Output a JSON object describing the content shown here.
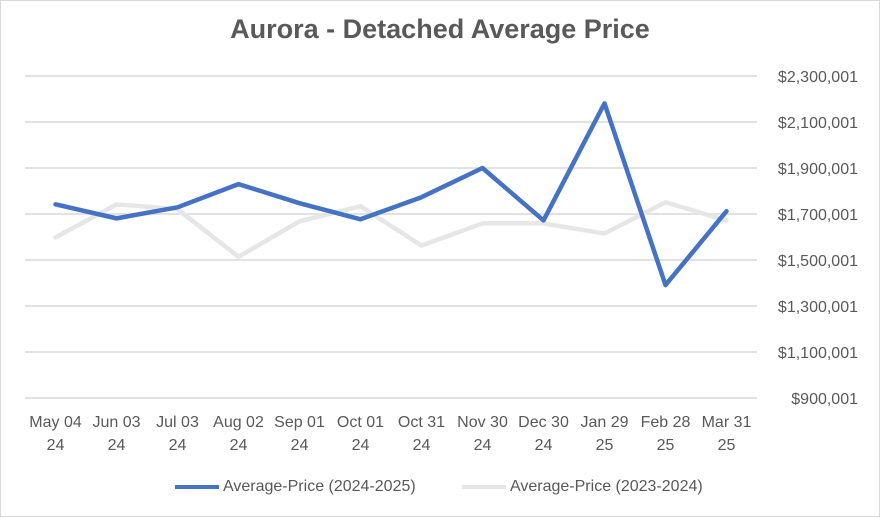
{
  "chart_data": {
    "type": "line",
    "title": "Aurora  - Detached Average Price",
    "categories": [
      [
        "May 04",
        "24"
      ],
      [
        "Jun 03",
        "24"
      ],
      [
        "Jul 03",
        "24"
      ],
      [
        "Aug 02",
        "24"
      ],
      [
        "Sep 01",
        "24"
      ],
      [
        "Oct 01",
        "24"
      ],
      [
        "Oct 31",
        "24"
      ],
      [
        "Nov 30",
        "24"
      ],
      [
        "Dec 30",
        "24"
      ],
      [
        "Jan 29",
        "25"
      ],
      [
        "Feb 28",
        "25"
      ],
      [
        "Mar 31",
        "25"
      ]
    ],
    "yticks": [
      "$900,001",
      "$1,100,001",
      "$1,300,001",
      "$1,500,001",
      "$1,700,001",
      "$1,900,001",
      "$2,100,001",
      "$2,300,001"
    ],
    "ylim": [
      900001,
      2300001
    ],
    "y_axis_position": "right",
    "grid": true,
    "legend_position": "bottom",
    "series": [
      {
        "name": "Average-Price (2024-2025)",
        "color": "#4472c4",
        "values": [
          1742000,
          1681000,
          1729000,
          1830000,
          1747000,
          1677000,
          1773000,
          1900000,
          1672000,
          2181000,
          1391000,
          1712000
        ]
      },
      {
        "name": "Average-Price (2023-2024)",
        "color": "#e7e6e6",
        "values": [
          1598000,
          1742000,
          1721000,
          1514000,
          1668000,
          1734000,
          1563000,
          1659000,
          1659000,
          1615000,
          1751000,
          1672000
        ]
      }
    ]
  }
}
